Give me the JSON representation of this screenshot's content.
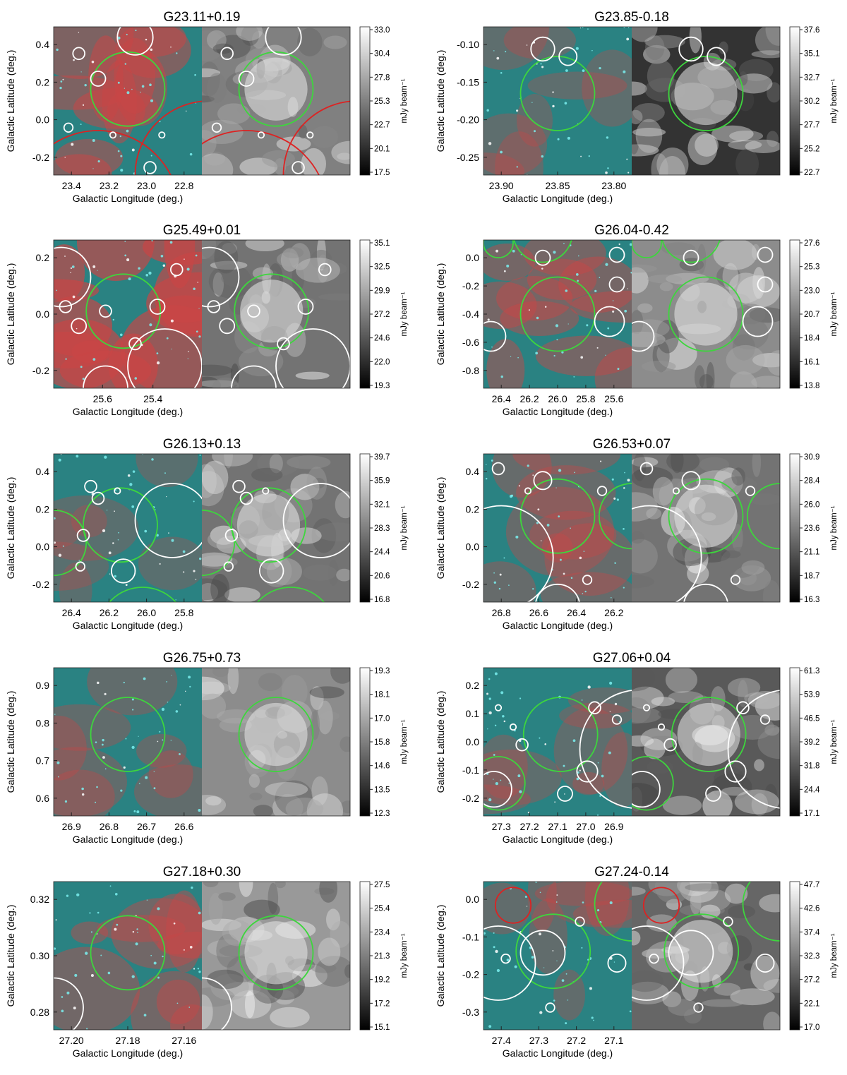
{
  "figure": {
    "axis_labels": {
      "ylabel": "Galactic Latitude (deg.)",
      "xlabel": "Galactic Longitude (deg.)",
      "cbar_unit": "mJy beam⁻¹"
    },
    "colors": {
      "candidate_circle": "#3dd63d",
      "known_hii_circle": "#ffffff",
      "snr_circle": "#dd2222",
      "rgb_base": "#2a8282",
      "rgb_emission": "#c84646"
    },
    "panels": [
      {
        "title": "G23.11+0.19",
        "xticks": [
          "23.4",
          "23.2",
          "23.0",
          "22.8"
        ],
        "yticks": [
          "0.4",
          "0.2",
          "0.0",
          "-0.2"
        ],
        "cbar_ticks": [
          "33.0",
          "30.4",
          "27.8",
          "25.3",
          "22.7",
          "20.1",
          "17.5"
        ],
        "style": {
          "red": 0.55,
          "gray_level": 0.5
        }
      },
      {
        "title": "G23.85-0.18",
        "xticks": [
          "23.90",
          "23.85",
          "23.80"
        ],
        "yticks": [
          "-0.10",
          "-0.15",
          "-0.20",
          "-0.25"
        ],
        "cbar_ticks": [
          "37.6",
          "35.1",
          "32.7",
          "30.2",
          "27.7",
          "25.2",
          "22.7"
        ],
        "style": {
          "red": 0.15,
          "gray_level": 0.2
        }
      },
      {
        "title": "G25.49+0.01",
        "xticks": [
          "25.6",
          "25.4"
        ],
        "yticks": [
          "0.2",
          "0.0",
          "-0.2"
        ],
        "cbar_ticks": [
          "35.1",
          "32.5",
          "29.9",
          "27.2",
          "24.6",
          "22.0",
          "19.3"
        ],
        "style": {
          "red": 0.85,
          "gray_level": 0.45
        }
      },
      {
        "title": "G26.04-0.42",
        "xticks": [
          "26.4",
          "26.2",
          "26.0",
          "25.8",
          "25.6"
        ],
        "yticks": [
          "0.0",
          "-0.2",
          "-0.4",
          "-0.6",
          "-0.8"
        ],
        "cbar_ticks": [
          "27.6",
          "25.3",
          "23.0",
          "20.7",
          "18.4",
          "16.1",
          "13.8"
        ],
        "style": {
          "red": 0.45,
          "gray_level": 0.55
        }
      },
      {
        "title": "G26.13+0.13",
        "xticks": [
          "26.4",
          "26.2",
          "26.0",
          "25.8"
        ],
        "yticks": [
          "0.4",
          "0.2",
          "0.0",
          "-0.2"
        ],
        "cbar_ticks": [
          "39.7",
          "35.9",
          "32.1",
          "28.3",
          "24.4",
          "20.6",
          "16.8"
        ],
        "style": {
          "red": 0.1,
          "gray_level": 0.45
        }
      },
      {
        "title": "G26.53+0.07",
        "xticks": [
          "26.8",
          "26.6",
          "26.4",
          "26.2"
        ],
        "yticks": [
          "0.4",
          "0.2",
          "0.0",
          "-0.2"
        ],
        "cbar_ticks": [
          "30.9",
          "28.4",
          "26.0",
          "23.6",
          "21.1",
          "18.7",
          "16.3"
        ],
        "style": {
          "red": 0.25,
          "gray_level": 0.45
        }
      },
      {
        "title": "G26.75+0.73",
        "xticks": [
          "26.9",
          "26.8",
          "26.7",
          "26.6"
        ],
        "yticks": [
          "0.9",
          "0.8",
          "0.7",
          "0.6"
        ],
        "cbar_ticks": [
          "19.3",
          "18.1",
          "17.0",
          "15.8",
          "14.6",
          "13.5",
          "12.3"
        ],
        "style": {
          "red": 0.2,
          "gray_level": 0.55
        }
      },
      {
        "title": "G27.06+0.04",
        "xticks": [
          "27.3",
          "27.2",
          "27.1",
          "27.0",
          "26.9"
        ],
        "yticks": [
          "0.2",
          "0.1",
          "0.0",
          "-0.1",
          "-0.2"
        ],
        "cbar_ticks": [
          "61.3",
          "53.9",
          "46.5",
          "39.2",
          "31.8",
          "24.4",
          "17.1"
        ],
        "style": {
          "red": 0.15,
          "gray_level": 0.35
        }
      },
      {
        "title": "G27.18+0.30",
        "xticks": [
          "27.20",
          "27.18",
          "27.16"
        ],
        "yticks": [
          "0.32",
          "0.30",
          "0.28"
        ],
        "cbar_ticks": [
          "27.5",
          "25.4",
          "23.4",
          "21.3",
          "19.2",
          "17.2",
          "15.1"
        ],
        "style": {
          "red": 0.4,
          "gray_level": 0.6
        }
      },
      {
        "title": "G27.24-0.14",
        "xticks": [
          "27.4",
          "27.3",
          "27.2",
          "27.1"
        ],
        "yticks": [
          "0.0",
          "-0.1",
          "-0.2",
          "-0.3"
        ],
        "cbar_ticks": [
          "47.7",
          "42.6",
          "37.4",
          "32.3",
          "27.2",
          "22.1",
          "17.0"
        ],
        "style": {
          "red": 0.2,
          "gray_level": 0.4
        }
      }
    ]
  }
}
